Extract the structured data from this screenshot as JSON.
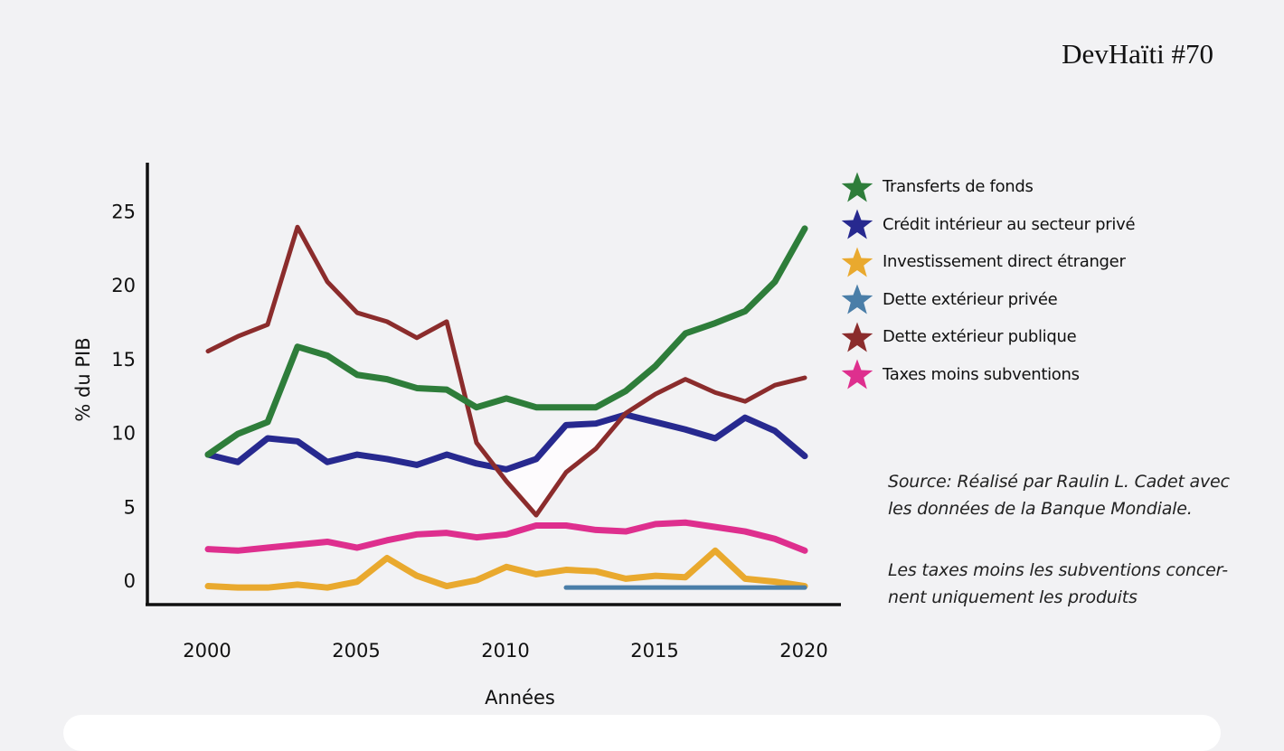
{
  "brand": "DevHaïti #70",
  "chart_data": {
    "type": "line",
    "title": "",
    "xlabel": "Années",
    "ylabel": "% du PIB",
    "xlim": [
      1998,
      2021.2
    ],
    "ylim": [
      -1.6,
      28.3
    ],
    "xticks": [
      2000,
      2005,
      2010,
      2015,
      2020
    ],
    "yticks": [
      0,
      5,
      10,
      15,
      20,
      25
    ],
    "grid": false,
    "legend_position": "right",
    "x": [
      2000,
      2001,
      2002,
      2003,
      2004,
      2005,
      2006,
      2007,
      2008,
      2009,
      2010,
      2011,
      2012,
      2013,
      2014,
      2015,
      2016,
      2017,
      2018,
      2019,
      2020
    ],
    "series": [
      {
        "name": "Transferts de fonds",
        "color": "#2e7d3a",
        "values": [
          8.5,
          9.9,
          10.7,
          15.8,
          15.2,
          13.9,
          13.6,
          13.0,
          12.9,
          11.7,
          12.3,
          11.7,
          11.7,
          11.7,
          12.8,
          14.5,
          16.7,
          17.4,
          18.2,
          20.2,
          23.8
        ]
      },
      {
        "name": "Crédit intérieur au secteur privé",
        "color": "#27298f",
        "values": [
          8.5,
          8.0,
          9.6,
          9.4,
          8.0,
          8.5,
          8.2,
          7.8,
          8.5,
          7.9,
          7.5,
          8.2,
          10.5,
          10.6,
          11.2,
          10.7,
          10.2,
          9.6,
          11.0,
          10.1,
          8.4
        ]
      },
      {
        "name": "Investissement direct étranger",
        "color": "#e9a92e",
        "values": [
          -0.4,
          -0.5,
          -0.5,
          -0.3,
          -0.5,
          -0.1,
          1.5,
          0.3,
          -0.4,
          0.0,
          0.9,
          0.4,
          0.7,
          0.6,
          0.1,
          0.3,
          0.2,
          2.0,
          0.1,
          -0.1,
          -0.4
        ]
      },
      {
        "name": "Dette extérieur privée",
        "color": "#4a7ea8",
        "values": [
          null,
          null,
          null,
          null,
          null,
          null,
          null,
          null,
          null,
          null,
          null,
          null,
          -0.5,
          -0.5,
          -0.5,
          -0.5,
          -0.5,
          -0.5,
          -0.5,
          -0.5,
          -0.5
        ]
      },
      {
        "name": "Dette extérieur publique",
        "color": "#8b2c2c",
        "values": [
          15.5,
          16.5,
          17.3,
          23.9,
          20.2,
          18.1,
          17.5,
          16.4,
          17.5,
          9.3,
          6.7,
          4.4,
          7.3,
          8.9,
          11.3,
          12.6,
          13.6,
          12.7,
          12.1,
          13.2,
          13.7
        ]
      },
      {
        "name": "Taxes moins subventions",
        "color": "#de2f8e",
        "values": [
          2.1,
          2.0,
          2.2,
          2.4,
          2.6,
          2.2,
          2.7,
          3.1,
          3.2,
          2.9,
          3.1,
          3.7,
          3.7,
          3.4,
          3.3,
          3.8,
          3.9,
          3.6,
          3.3,
          2.8,
          2.0
        ]
      }
    ]
  },
  "notes": {
    "source": "Source: Réalisé par Raulin L. Cadet avec les données de la Banque Mondiale.",
    "taxes": "Les taxes moins les subventions concer-nent uniquement les produits"
  }
}
